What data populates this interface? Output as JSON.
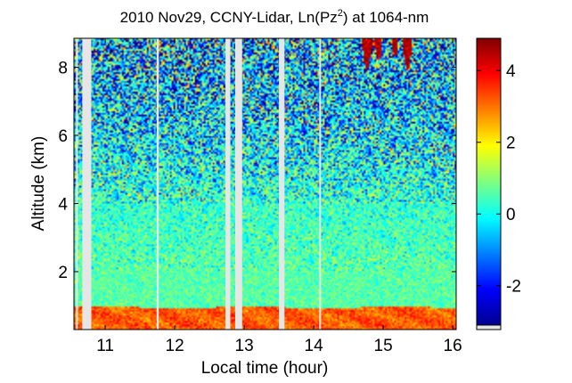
{
  "chart_data": {
    "type": "heatmap",
    "title": {
      "prefix": "2010 Nov29, CCNY-Lidar, Ln(Pz",
      "superscript": "2",
      "suffix": ") at 1064-nm"
    },
    "xlabel": "Local time (hour)",
    "ylabel": "Altitude (km)",
    "xlim": [
      10.55,
      16.05
    ],
    "ylim": [
      0.3,
      8.85
    ],
    "x_ticks": [
      11,
      12,
      13,
      14,
      15,
      16
    ],
    "y_ticks": [
      2,
      4,
      6,
      8
    ],
    "colorbar": {
      "range": [
        -3.1,
        4.9
      ],
      "ticks": [
        -2,
        0,
        2,
        4
      ],
      "tick_labels": [
        "-2",
        "0",
        "2",
        "4"
      ],
      "colormap": "jet"
    },
    "data_gaps_hours": [
      [
        10.58,
        10.6
      ],
      [
        10.67,
        10.8
      ],
      [
        11.74,
        11.77
      ],
      [
        12.73,
        12.8
      ],
      [
        12.87,
        12.97
      ],
      [
        13.5,
        13.58
      ],
      [
        14.08,
        14.1
      ]
    ],
    "layers": [
      {
        "name_text": "",
        "altitude_km": [
          0.3,
          0.95
        ],
        "approx_value": 3.2
      },
      {
        "name_text": "",
        "altitude_km": [
          0.95,
          2.0
        ],
        "approx_value": 0.6
      },
      {
        "name_text": "",
        "altitude_km": [
          2.0,
          4.0
        ],
        "approx_value": 0.3
      },
      {
        "name_text": "",
        "altitude_km": [
          4.0,
          8.85
        ],
        "approx_value": -0.5
      }
    ],
    "cloud_feature": {
      "time_hours": [
        14.7,
        15.6
      ],
      "altitude_km": [
        7.8,
        8.85
      ],
      "approx_value": 4.5
    }
  }
}
